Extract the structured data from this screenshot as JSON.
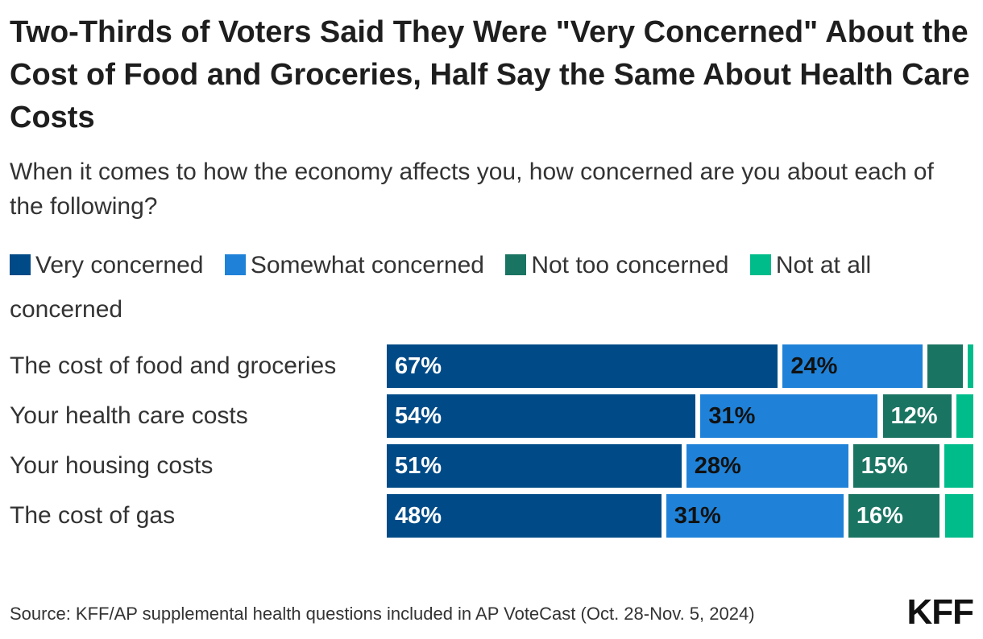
{
  "title": "Two-Thirds of Voters Said They Were \"Very Concerned\" About the Cost of Food and Groceries, Half Say the Same About Health Care Costs",
  "subtitle": "When it comes to how the economy affects you, how concerned are you about each of the following?",
  "source": "Source: KFF/AP supplemental health questions included in AP VoteCast (Oct. 28-Nov. 5, 2024)",
  "logo": "KFF",
  "colors": {
    "very": "#004B87",
    "somewhat": "#1F82D8",
    "not_too": "#1A7462",
    "not_at_all": "#00BC8A"
  },
  "chart_data": {
    "type": "bar",
    "orientation": "horizontal",
    "stacked": true,
    "title": "Two-Thirds of Voters Said They Were \"Very Concerned\" About the Cost of Food and Groceries, Half Say the Same About Health Care Costs",
    "categories": [
      "The cost of food and groceries",
      "Your health care costs",
      "Your housing costs",
      "The cost of gas"
    ],
    "series": [
      {
        "name": "Very concerned",
        "values": [
          67,
          54,
          51,
          48
        ],
        "labels": [
          "67%",
          "54%",
          "51%",
          "48%"
        ]
      },
      {
        "name": "Somewhat concerned",
        "values": [
          24,
          31,
          28,
          31
        ],
        "labels": [
          "24%",
          "31%",
          "28%",
          "31%"
        ]
      },
      {
        "name": "Not too concerned",
        "values": [
          6,
          12,
          15,
          16
        ],
        "labels": [
          "",
          "12%",
          "15%",
          "16%"
        ]
      },
      {
        "name": "Not at all concerned",
        "values": [
          1,
          3,
          5,
          5
        ],
        "labels": [
          "",
          "",
          "",
          ""
        ]
      }
    ],
    "xlim": [
      0,
      100
    ],
    "legend_position": "top"
  }
}
